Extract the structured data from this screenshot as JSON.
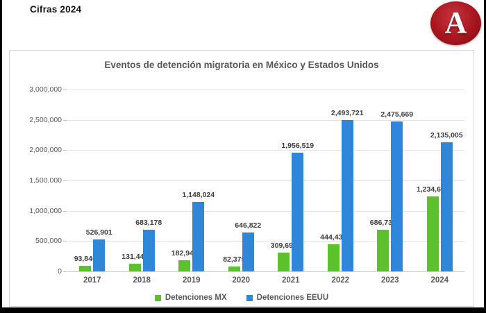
{
  "page": {
    "caption": "Cifras 2024"
  },
  "logo": {
    "letter": "A",
    "bg_color": "#a8151d",
    "bg_edge_color": "#7c0c12",
    "bg_highlight_color": "#c63540"
  },
  "chart_data": {
    "type": "bar",
    "title": "Eventos de detención migratoria en México y Estados Unidos",
    "categories": [
      "2017",
      "2018",
      "2019",
      "2020",
      "2021",
      "2022",
      "2023",
      "2024"
    ],
    "series": [
      {
        "name": "Detenciones MX",
        "color": "#5cc22c",
        "values": [
          93846,
          131445,
          182940,
          82379,
          309692,
          444439,
          686732,
          1234698
        ]
      },
      {
        "name": "Detenciones EEUU",
        "color": "#2f87da",
        "values": [
          526901,
          683178,
          1148024,
          646822,
          1956519,
          2493721,
          2475669,
          2135005
        ]
      }
    ],
    "xlabel": "",
    "ylabel": "",
    "ylim": [
      0,
      3000000
    ],
    "ytick_step": 500000,
    "yticks": [
      "0",
      "500,000",
      "1,000,000",
      "1,500,000",
      "2,000,000",
      "2,500,000",
      "3,000,000"
    ],
    "grid": true,
    "data_labels": true,
    "legend_position": "bottom"
  }
}
